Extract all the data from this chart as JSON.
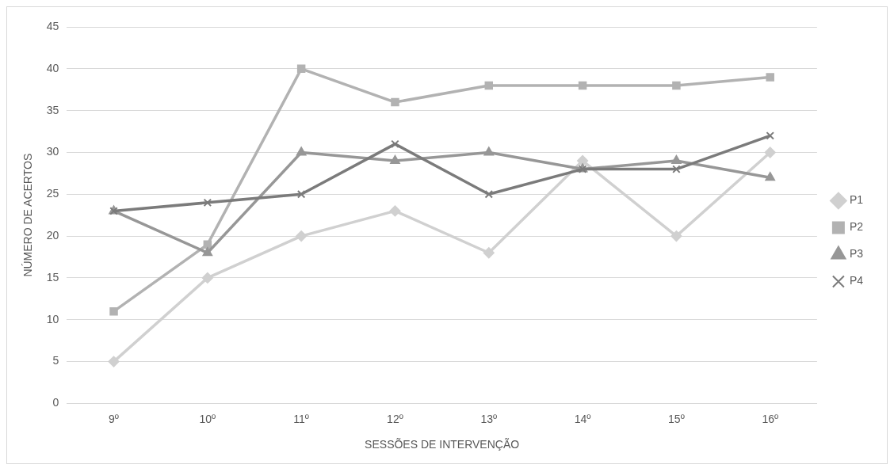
{
  "chart_data": {
    "type": "line",
    "xlabel": "SESSÕES DE INTERVENÇÃO",
    "ylabel": "NÚMERO DE ACERTOS",
    "categories": [
      "9º",
      "10º",
      "11º",
      "12º",
      "13º",
      "14º",
      "15º",
      "16º"
    ],
    "series": [
      {
        "name": "P1",
        "color": "#d0d0d0",
        "marker": "diamond",
        "values": [
          5,
          15,
          20,
          23,
          18,
          29,
          20,
          30
        ]
      },
      {
        "name": "P2",
        "color": "#b2b2b2",
        "marker": "square",
        "values": [
          11,
          19,
          40,
          36,
          38,
          38,
          38,
          39
        ]
      },
      {
        "name": "P3",
        "color": "#979797",
        "marker": "triangle",
        "values": [
          23,
          18,
          30,
          29,
          30,
          28,
          29,
          27
        ]
      },
      {
        "name": "P4",
        "color": "#7b7b7b",
        "marker": "cross",
        "values": [
          23,
          24,
          25,
          31,
          25,
          28,
          28,
          32
        ]
      }
    ],
    "ylim": [
      0,
      45
    ],
    "yticks": [
      0,
      5,
      10,
      15,
      20,
      25,
      30,
      35,
      40,
      45
    ],
    "grid": "y",
    "legend": "right",
    "line_style": "solid"
  }
}
